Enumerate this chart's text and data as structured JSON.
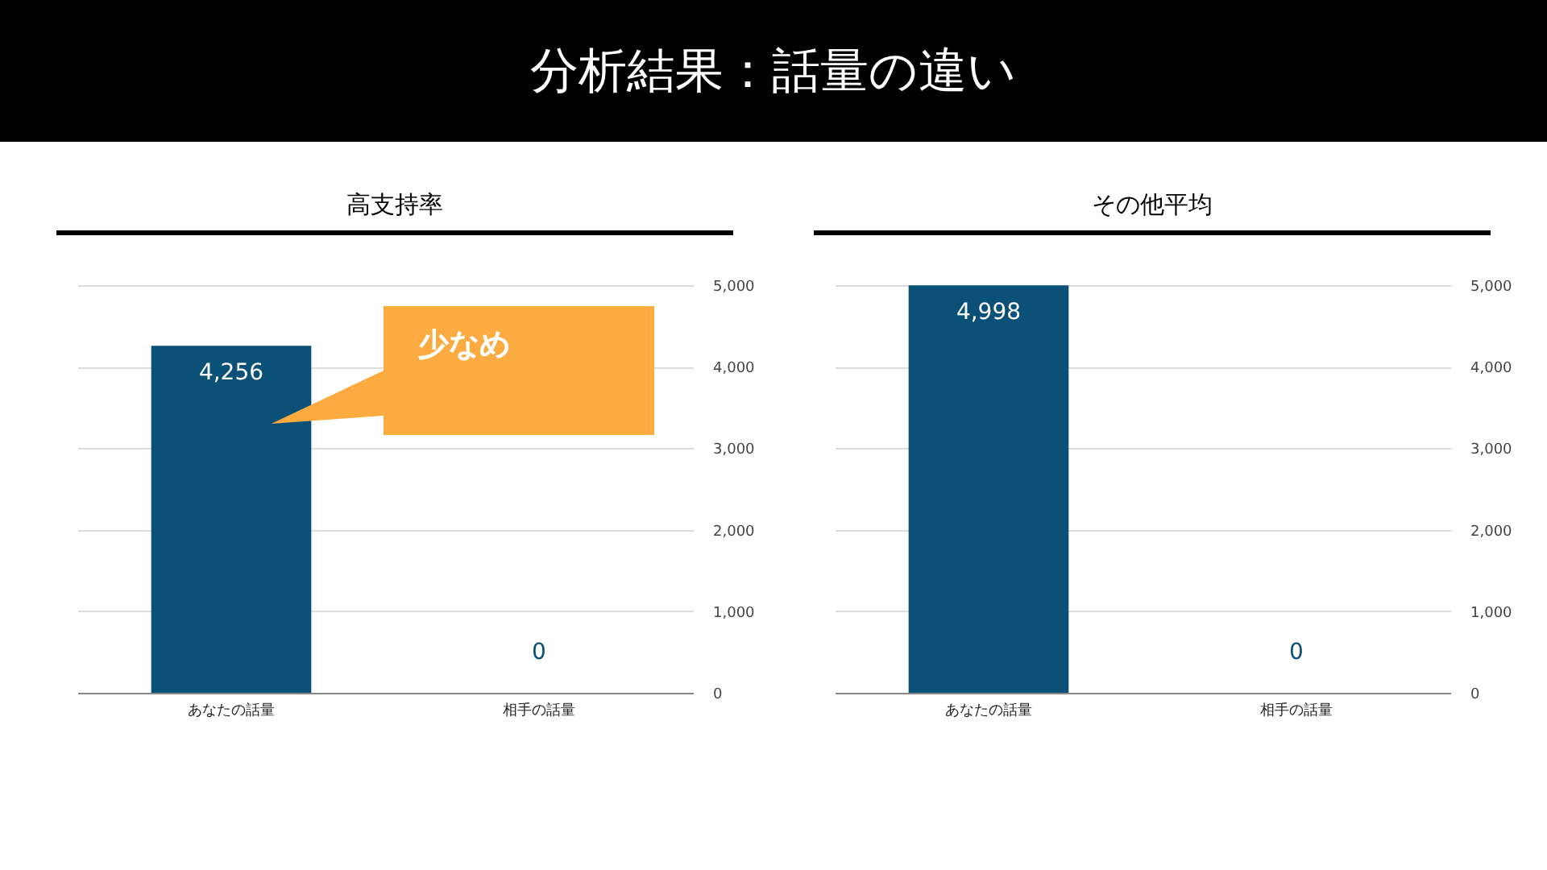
{
  "chart_data": [
    {
      "type": "bar",
      "title": "高支持率",
      "annotations": [
        "分析結果：話量の違い",
        "少なめ"
      ],
      "categories": [
        "あなたの話量",
        "相手の話量"
      ],
      "values": [
        4256,
        0
      ],
      "value_labels": [
        "4,256",
        "0"
      ],
      "color": "#0b5077",
      "ylim": [
        0,
        5000
      ],
      "yticks": [
        0,
        {
          "value": 1000,
          "label": "1,000"
        },
        {
          "value": 2000,
          "label": "2,000"
        },
        {
          "value": 3000,
          "label": "3,000"
        },
        {
          "value": 4000,
          "label": "4,000"
        },
        {
          "value": 5000,
          "label": "5,000"
        }
      ],
      "grid": true
    },
    {
      "type": "bar",
      "title": "その他平均",
      "categories": [
        "あなたの話量",
        "相手の話量"
      ],
      "values": [
        4998,
        0
      ],
      "value_labels": [
        "4,998",
        "0"
      ],
      "color": "#0b5077",
      "ylim": [
        0,
        5000
      ],
      "yticks": [
        0,
        {
          "value": 1000,
          "label": "1,000"
        },
        {
          "value": 2000,
          "label": "2,000"
        },
        {
          "value": 3000,
          "label": "3,000"
        },
        {
          "value": 4000,
          "label": "4,000"
        },
        {
          "value": 5000,
          "label": "5,000"
        }
      ],
      "grid": true
    }
  ]
}
